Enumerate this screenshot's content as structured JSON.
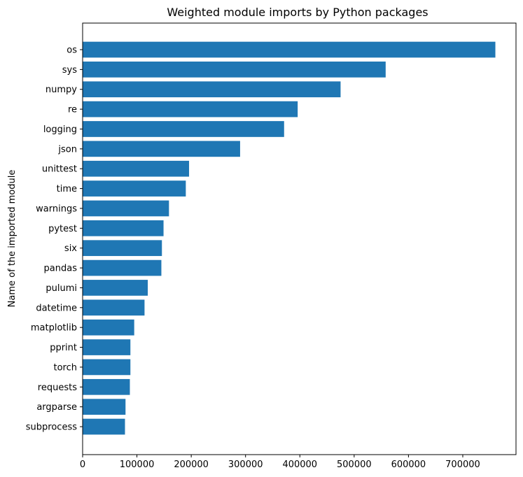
{
  "chart_data": {
    "type": "bar",
    "orientation": "horizontal",
    "title": "Weighted module imports by Python packages",
    "xlabel": "",
    "ylabel": "Name of the imported module",
    "categories": [
      "os",
      "sys",
      "numpy",
      "re",
      "logging",
      "json",
      "unittest",
      "time",
      "warnings",
      "pytest",
      "six",
      "pandas",
      "pulumi",
      "datetime",
      "matplotlib",
      "pprint",
      "torch",
      "requests",
      "argparse",
      "subprocess"
    ],
    "values": [
      760000,
      558000,
      475000,
      396000,
      371000,
      290000,
      196000,
      190000,
      159000,
      149000,
      146000,
      145000,
      120000,
      114000,
      95000,
      88000,
      88000,
      87000,
      79000,
      78000
    ],
    "xlim": [
      0,
      798000
    ],
    "xticks": [
      0,
      100000,
      200000,
      300000,
      400000,
      500000,
      600000,
      700000
    ],
    "color": "#1f77b4",
    "grid": false
  }
}
